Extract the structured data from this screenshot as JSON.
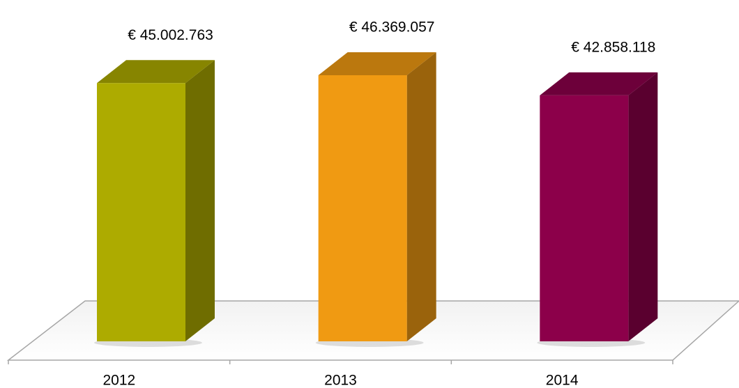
{
  "chart_data": {
    "type": "bar3d",
    "categories": [
      "2012",
      "2013",
      "2014"
    ],
    "values": [
      45002763,
      46369057,
      42858118
    ],
    "value_labels": [
      "€ 45.002.763",
      "€ 46.369.057",
      "€ 42.858.118"
    ],
    "colors": [
      "#adab00",
      "#f09a12",
      "#8c004a"
    ]
  }
}
